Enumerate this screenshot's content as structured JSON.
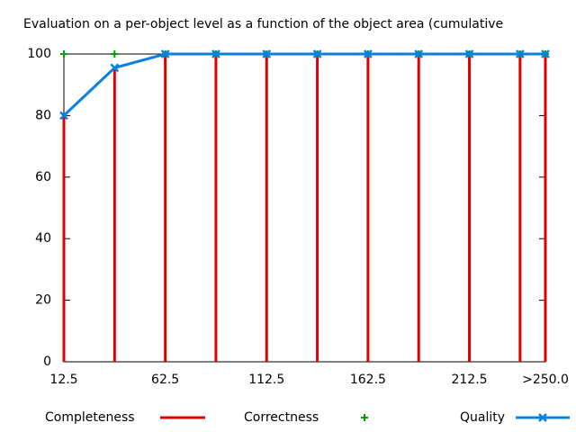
{
  "chart_data": {
    "type": "impulse-line",
    "title": "Evaluation on a per-object level as a function of the object area (cumulative",
    "x": [
      12.5,
      37.5,
      62.5,
      87.5,
      112.5,
      137.5,
      162.5,
      187.5,
      212.5,
      237.5,
      250
    ],
    "series": [
      {
        "name": "Completeness",
        "color": "#e00000",
        "style": "impulses",
        "values": [
          80,
          95,
          100,
          100,
          100,
          100,
          100,
          100,
          100,
          100,
          100
        ]
      },
      {
        "name": "Correctness",
        "color": "#00a000",
        "style": "points",
        "values": [
          100,
          100,
          100,
          100,
          100,
          100,
          100,
          100,
          100,
          100,
          100
        ]
      },
      {
        "name": "Quality",
        "color": "#0a80e0",
        "style": "linespoints",
        "values": [
          80,
          95.5,
          100,
          100,
          100,
          100,
          100,
          100,
          100,
          100,
          100
        ]
      }
    ],
    "xlim": [
      12.5,
      250
    ],
    "xticks": [
      12.5,
      62.5,
      112.5,
      162.5,
      212.5,
      {
        "value": 250,
        "label": ">250.0"
      }
    ],
    "ylim": [
      0,
      100
    ],
    "yticks": [
      0,
      20,
      40,
      60,
      80,
      100
    ]
  }
}
